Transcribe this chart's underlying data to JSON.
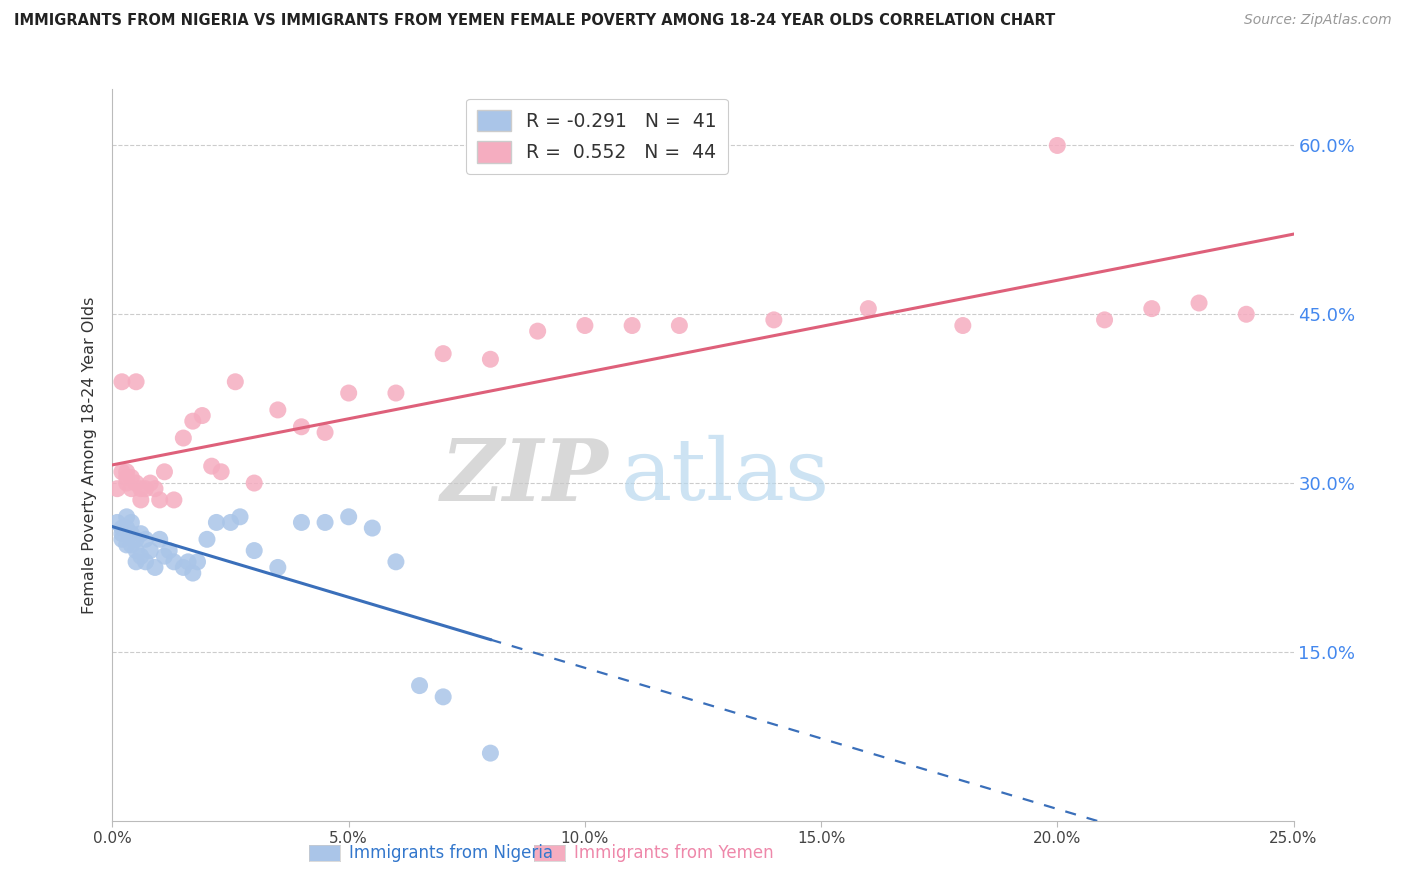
{
  "title": "IMMIGRANTS FROM NIGERIA VS IMMIGRANTS FROM YEMEN FEMALE POVERTY AMONG 18-24 YEAR OLDS CORRELATION CHART",
  "source": "Source: ZipAtlas.com",
  "ylabel": "Female Poverty Among 18-24 Year Olds",
  "xlabel_nigeria": "Immigrants from Nigeria",
  "xlabel_yemen": "Immigrants from Yemen",
  "watermark_zip": "ZIP",
  "watermark_atlas": "atlas",
  "xlim": [
    0.0,
    0.25
  ],
  "ylim": [
    0.0,
    0.65
  ],
  "xticks": [
    0.0,
    0.05,
    0.1,
    0.15,
    0.2,
    0.25
  ],
  "yticks": [
    0.15,
    0.3,
    0.45,
    0.6
  ],
  "ytick_labels": [
    "15.0%",
    "30.0%",
    "45.0%",
    "60.0%"
  ],
  "xtick_labels": [
    "0.0%",
    "5.0%",
    "10.0%",
    "15.0%",
    "20.0%",
    "25.0%"
  ],
  "nigeria_color": "#aac5e8",
  "yemen_color": "#f5adc0",
  "nigeria_line_color": "#3a6fba",
  "yemen_line_color": "#de607a",
  "nigeria_R": -0.291,
  "nigeria_N": 41,
  "yemen_R": 0.552,
  "yemen_N": 44,
  "legend_nigeria_label": "R = -0.291   N =  41",
  "legend_yemen_label": "R =  0.552   N =  44",
  "nigeria_x": [
    0.001,
    0.002,
    0.002,
    0.002,
    0.003,
    0.003,
    0.003,
    0.004,
    0.004,
    0.004,
    0.005,
    0.005,
    0.005,
    0.006,
    0.006,
    0.007,
    0.007,
    0.008,
    0.009,
    0.01,
    0.011,
    0.012,
    0.013,
    0.015,
    0.016,
    0.017,
    0.018,
    0.02,
    0.022,
    0.025,
    0.027,
    0.03,
    0.035,
    0.04,
    0.045,
    0.05,
    0.055,
    0.06,
    0.065,
    0.07,
    0.08
  ],
  "nigeria_y": [
    0.265,
    0.26,
    0.255,
    0.25,
    0.27,
    0.26,
    0.245,
    0.265,
    0.255,
    0.245,
    0.25,
    0.24,
    0.23,
    0.255,
    0.235,
    0.25,
    0.23,
    0.24,
    0.225,
    0.25,
    0.235,
    0.24,
    0.23,
    0.225,
    0.23,
    0.22,
    0.23,
    0.25,
    0.265,
    0.265,
    0.27,
    0.24,
    0.225,
    0.265,
    0.265,
    0.27,
    0.26,
    0.23,
    0.12,
    0.11,
    0.06
  ],
  "yemen_x": [
    0.001,
    0.002,
    0.002,
    0.003,
    0.003,
    0.003,
    0.004,
    0.004,
    0.005,
    0.005,
    0.006,
    0.006,
    0.007,
    0.008,
    0.009,
    0.01,
    0.011,
    0.013,
    0.015,
    0.017,
    0.019,
    0.021,
    0.023,
    0.026,
    0.03,
    0.035,
    0.04,
    0.045,
    0.05,
    0.06,
    0.07,
    0.08,
    0.09,
    0.1,
    0.11,
    0.12,
    0.14,
    0.16,
    0.18,
    0.2,
    0.21,
    0.22,
    0.23,
    0.24
  ],
  "yemen_y": [
    0.295,
    0.31,
    0.39,
    0.3,
    0.305,
    0.31,
    0.305,
    0.295,
    0.3,
    0.39,
    0.295,
    0.285,
    0.295,
    0.3,
    0.295,
    0.285,
    0.31,
    0.285,
    0.34,
    0.355,
    0.36,
    0.315,
    0.31,
    0.39,
    0.3,
    0.365,
    0.35,
    0.345,
    0.38,
    0.38,
    0.415,
    0.41,
    0.435,
    0.44,
    0.44,
    0.44,
    0.445,
    0.455,
    0.44,
    0.6,
    0.445,
    0.455,
    0.46,
    0.45
  ]
}
